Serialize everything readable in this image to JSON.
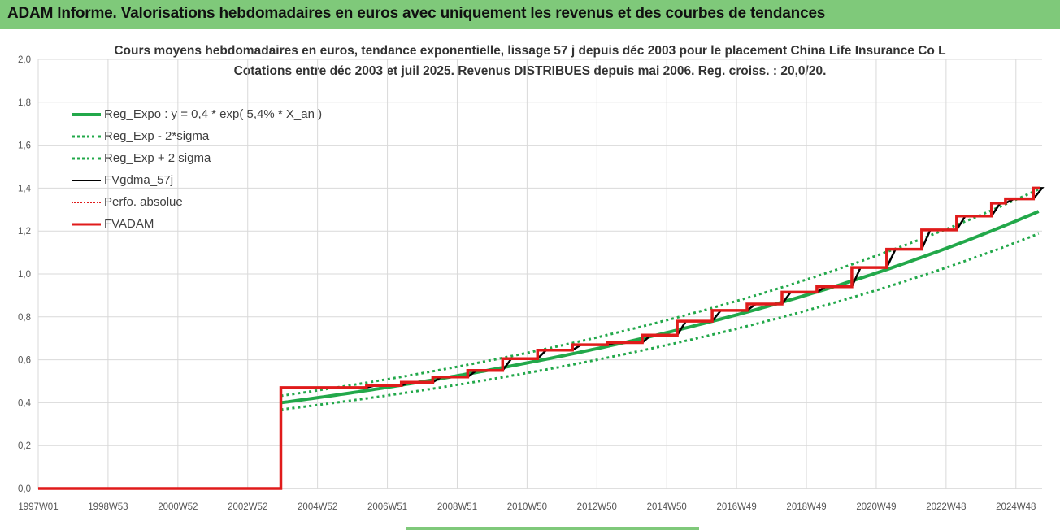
{
  "header": {
    "title": "ADAM Informe. Valorisations hebdomadaires en euros avec uniquement les revenus et des courbes de tendances"
  },
  "chart_data": {
    "type": "line",
    "title": "Cours moyens hebdomadaires en euros, tendance exponentielle, lissage 57 j depuis déc 2003 pour le placement China Life Insurance Co L",
    "subtitle": "Cotations entre déc 2003 et juil 2025. Revenus DISTRIBUES depuis mai 2006. Reg. croiss. : 20,0/20.",
    "xlabel": "",
    "ylabel": "",
    "ylim": [
      0,
      2.0
    ],
    "xlim": [
      1997.0,
      2025.75
    ],
    "y_ticks": [
      "0,0",
      "0,2",
      "0,4",
      "0,6",
      "0,8",
      "1,0",
      "1,2",
      "1,4",
      "1,6",
      "1,8",
      "2,0"
    ],
    "x_ticks": [
      {
        "label": "1997W01",
        "x": 1997.0
      },
      {
        "label": "1998W53",
        "x": 1999.0
      },
      {
        "label": "2000W52",
        "x": 2001.0
      },
      {
        "label": "2002W52",
        "x": 2003.0
      },
      {
        "label": "2004W52",
        "x": 2005.0
      },
      {
        "label": "2006W51",
        "x": 2007.0
      },
      {
        "label": "2008W51",
        "x": 2009.0
      },
      {
        "label": "2010W50",
        "x": 2011.0
      },
      {
        "label": "2012W50",
        "x": 2013.0
      },
      {
        "label": "2014W50",
        "x": 2015.0
      },
      {
        "label": "2016W49",
        "x": 2017.0
      },
      {
        "label": "2018W49",
        "x": 2019.0
      },
      {
        "label": "2020W49",
        "x": 2021.0
      },
      {
        "label": "2022W48",
        "x": 2023.0
      },
      {
        "label": "2024W48",
        "x": 2025.0
      }
    ],
    "grid": true,
    "legend_position": "top-left",
    "regression": {
      "a": 0.4,
      "rate": 0.054,
      "x0": 2003.95,
      "sigma_factor": 0.08,
      "x_end": 2025.7
    },
    "series": [
      {
        "name": "Reg_Expo : y = 0,4 * exp( 5,4% *  X_an )",
        "color": "#22a84a",
        "style": "solid",
        "width": 4
      },
      {
        "name": "Reg_Exp - 2*sigma",
        "color": "#22a84a",
        "style": "dotted",
        "width": 3
      },
      {
        "name": "Reg_Exp + 2 sigma",
        "color": "#22a84a",
        "style": "dotted",
        "width": 3
      },
      {
        "name": "FVgdma_57j",
        "color": "#000000",
        "style": "solid",
        "width": 2.5
      },
      {
        "name": "Perfo. absolue",
        "color": "#e01b1b",
        "style": "dotted",
        "width": 2
      },
      {
        "name": "FVADAM",
        "color": "#e01b1b",
        "style": "solid",
        "width": 3.5
      }
    ],
    "fvadam_steps": [
      {
        "x": 1997.0,
        "y": 0.0
      },
      {
        "x": 2003.95,
        "y": 0.0
      },
      {
        "x": 2003.95,
        "y": 0.47
      },
      {
        "x": 2006.4,
        "y": 0.47
      },
      {
        "x": 2006.4,
        "y": 0.48
      },
      {
        "x": 2007.4,
        "y": 0.48
      },
      {
        "x": 2007.4,
        "y": 0.495
      },
      {
        "x": 2008.3,
        "y": 0.495
      },
      {
        "x": 2008.3,
        "y": 0.52
      },
      {
        "x": 2009.3,
        "y": 0.52
      },
      {
        "x": 2009.3,
        "y": 0.55
      },
      {
        "x": 2010.3,
        "y": 0.55
      },
      {
        "x": 2010.3,
        "y": 0.605
      },
      {
        "x": 2011.3,
        "y": 0.605
      },
      {
        "x": 2011.3,
        "y": 0.645
      },
      {
        "x": 2012.3,
        "y": 0.645
      },
      {
        "x": 2012.3,
        "y": 0.67
      },
      {
        "x": 2013.3,
        "y": 0.67
      },
      {
        "x": 2013.3,
        "y": 0.68
      },
      {
        "x": 2014.3,
        "y": 0.68
      },
      {
        "x": 2014.3,
        "y": 0.715
      },
      {
        "x": 2015.3,
        "y": 0.715
      },
      {
        "x": 2015.3,
        "y": 0.78
      },
      {
        "x": 2016.3,
        "y": 0.78
      },
      {
        "x": 2016.3,
        "y": 0.83
      },
      {
        "x": 2017.3,
        "y": 0.83
      },
      {
        "x": 2017.3,
        "y": 0.86
      },
      {
        "x": 2018.3,
        "y": 0.86
      },
      {
        "x": 2018.3,
        "y": 0.915
      },
      {
        "x": 2019.3,
        "y": 0.915
      },
      {
        "x": 2019.3,
        "y": 0.94
      },
      {
        "x": 2020.3,
        "y": 0.94
      },
      {
        "x": 2020.3,
        "y": 1.03
      },
      {
        "x": 2021.3,
        "y": 1.03
      },
      {
        "x": 2021.3,
        "y": 1.115
      },
      {
        "x": 2022.3,
        "y": 1.115
      },
      {
        "x": 2022.3,
        "y": 1.205
      },
      {
        "x": 2023.3,
        "y": 1.205
      },
      {
        "x": 2023.3,
        "y": 1.27
      },
      {
        "x": 2024.3,
        "y": 1.27
      },
      {
        "x": 2024.3,
        "y": 1.33
      },
      {
        "x": 2024.7,
        "y": 1.33
      },
      {
        "x": 2024.7,
        "y": 1.35
      },
      {
        "x": 2025.5,
        "y": 1.35
      },
      {
        "x": 2025.5,
        "y": 1.4
      },
      {
        "x": 2025.7,
        "y": 1.4
      }
    ]
  }
}
